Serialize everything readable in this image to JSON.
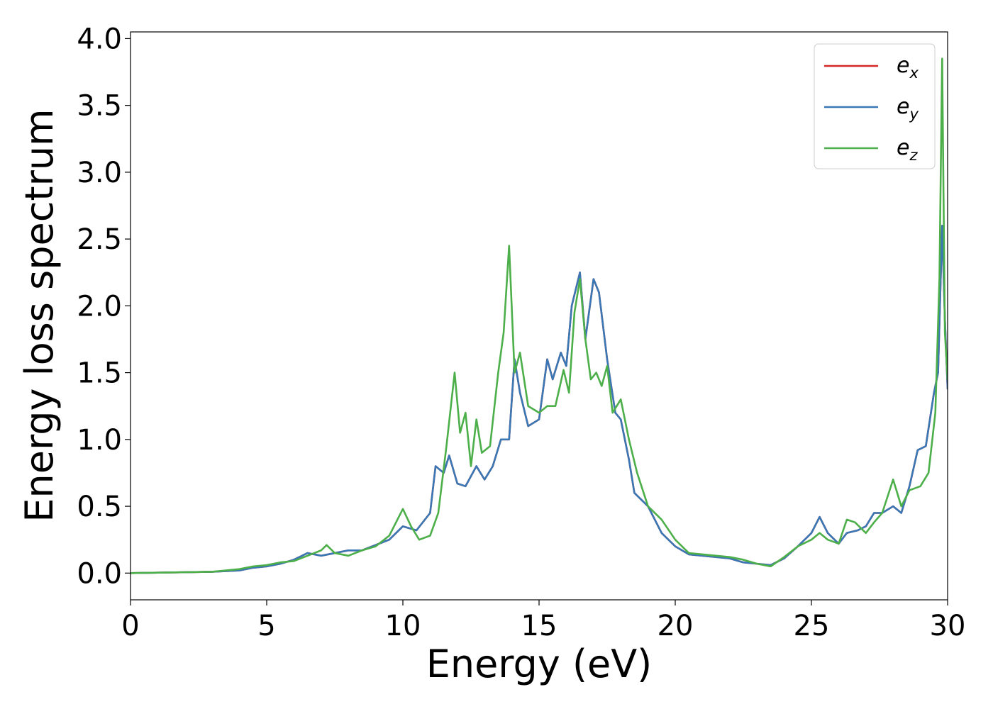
{
  "chart_data": {
    "type": "line",
    "title": "",
    "xlabel": "Energy (eV)",
    "ylabel": "Energy loss spectrum",
    "xlim": [
      0,
      30
    ],
    "ylim": [
      -0.2,
      4.05
    ],
    "xticks": [
      0,
      5,
      10,
      15,
      20,
      25,
      30
    ],
    "xtick_labels": [
      "0",
      "5",
      "10",
      "15",
      "20",
      "25",
      "30"
    ],
    "yticks": [
      0.0,
      0.5,
      1.0,
      1.5,
      2.0,
      2.5,
      3.0,
      3.5,
      4.0
    ],
    "ytick_labels": [
      "0.0",
      "0.5",
      "1.0",
      "1.5",
      "2.0",
      "2.5",
      "3.0",
      "3.5",
      "4.0"
    ],
    "grid": false,
    "legend_position": "top-right",
    "series": [
      {
        "name": "e_x",
        "legend_base": "e",
        "legend_sub": "x",
        "color": "#d62728",
        "x": [
          0,
          3,
          4,
          4.5,
          5,
          5.5,
          6,
          6.5,
          7,
          7.5,
          8,
          8.5,
          9,
          9.5,
          10,
          10.5,
          11,
          11.2,
          11.5,
          11.7,
          12,
          12.3,
          12.7,
          13,
          13.3,
          13.6,
          13.9,
          14.1,
          14.3,
          14.6,
          15,
          15.3,
          15.5,
          15.8,
          16,
          16.2,
          16.5,
          16.7,
          17,
          17.2,
          17.5,
          17.8,
          18,
          18.3,
          18.5,
          19,
          19.5,
          20,
          20.5,
          21,
          21.5,
          22,
          22.5,
          23,
          23.5,
          24,
          24.5,
          25,
          25.3,
          25.6,
          26,
          26.3,
          26.7,
          27,
          27.3,
          27.6,
          28,
          28.3,
          28.6,
          28.9,
          29.2,
          29.5,
          29.65,
          29.8,
          29.9,
          30
        ],
        "y": [
          0.0,
          0.01,
          0.02,
          0.04,
          0.05,
          0.07,
          0.1,
          0.15,
          0.13,
          0.15,
          0.17,
          0.17,
          0.21,
          0.25,
          0.35,
          0.32,
          0.45,
          0.8,
          0.75,
          0.88,
          0.67,
          0.65,
          0.8,
          0.7,
          0.8,
          1.0,
          1.0,
          1.6,
          1.35,
          1.1,
          1.15,
          1.6,
          1.45,
          1.65,
          1.55,
          2.0,
          2.25,
          1.75,
          2.2,
          2.1,
          1.6,
          1.2,
          1.15,
          0.85,
          0.6,
          0.5,
          0.3,
          0.2,
          0.14,
          0.13,
          0.12,
          0.11,
          0.08,
          0.07,
          0.06,
          0.11,
          0.2,
          0.3,
          0.42,
          0.3,
          0.22,
          0.3,
          0.32,
          0.35,
          0.45,
          0.45,
          0.5,
          0.45,
          0.65,
          0.92,
          0.95,
          1.35,
          1.5,
          2.6,
          1.9,
          1.38
        ]
      },
      {
        "name": "e_y",
        "legend_base": "e",
        "legend_sub": "y",
        "color": "#3a78b5",
        "x": [
          0,
          3,
          4,
          4.5,
          5,
          5.5,
          6,
          6.5,
          7,
          7.5,
          8,
          8.5,
          9,
          9.5,
          10,
          10.5,
          11,
          11.2,
          11.5,
          11.7,
          12,
          12.3,
          12.7,
          13,
          13.3,
          13.6,
          13.9,
          14.1,
          14.3,
          14.6,
          15,
          15.3,
          15.5,
          15.8,
          16,
          16.2,
          16.5,
          16.7,
          17,
          17.2,
          17.5,
          17.8,
          18,
          18.3,
          18.5,
          19,
          19.5,
          20,
          20.5,
          21,
          21.5,
          22,
          22.5,
          23,
          23.5,
          24,
          24.5,
          25,
          25.3,
          25.6,
          26,
          26.3,
          26.7,
          27,
          27.3,
          27.6,
          28,
          28.3,
          28.6,
          28.9,
          29.2,
          29.5,
          29.65,
          29.8,
          29.9,
          30
        ],
        "y": [
          0.0,
          0.01,
          0.02,
          0.04,
          0.05,
          0.07,
          0.1,
          0.15,
          0.13,
          0.15,
          0.17,
          0.17,
          0.21,
          0.25,
          0.35,
          0.32,
          0.45,
          0.8,
          0.75,
          0.88,
          0.67,
          0.65,
          0.8,
          0.7,
          0.8,
          1.0,
          1.0,
          1.6,
          1.35,
          1.1,
          1.15,
          1.6,
          1.45,
          1.65,
          1.55,
          2.0,
          2.25,
          1.75,
          2.2,
          2.1,
          1.6,
          1.2,
          1.15,
          0.85,
          0.6,
          0.5,
          0.3,
          0.2,
          0.14,
          0.13,
          0.12,
          0.11,
          0.08,
          0.07,
          0.06,
          0.11,
          0.2,
          0.3,
          0.42,
          0.3,
          0.22,
          0.3,
          0.32,
          0.35,
          0.45,
          0.45,
          0.5,
          0.45,
          0.65,
          0.92,
          0.95,
          1.35,
          1.5,
          2.6,
          1.9,
          1.38
        ]
      },
      {
        "name": "e_z",
        "legend_base": "e",
        "legend_sub": "z",
        "color": "#4daf4a",
        "x": [
          0,
          3,
          4,
          4.5,
          5,
          5.5,
          6,
          6.5,
          7,
          7.2,
          7.5,
          8,
          8.5,
          9,
          9.5,
          10,
          10.3,
          10.6,
          11,
          11.3,
          11.6,
          11.9,
          12.1,
          12.3,
          12.5,
          12.7,
          12.9,
          13.2,
          13.5,
          13.7,
          13.9,
          14.1,
          14.3,
          14.6,
          15,
          15.3,
          15.6,
          15.9,
          16.1,
          16.3,
          16.5,
          16.7,
          16.9,
          17.1,
          17.3,
          17.5,
          17.7,
          18,
          18.3,
          18.6,
          19,
          19.5,
          20,
          20.5,
          21,
          21.5,
          22,
          22.5,
          23,
          23.5,
          24,
          24.5,
          25,
          25.3,
          25.6,
          26,
          26.3,
          26.6,
          27,
          27.3,
          27.6,
          28,
          28.3,
          28.6,
          29,
          29.3,
          29.55,
          29.7,
          29.8,
          29.9,
          30
        ],
        "y": [
          0.0,
          0.01,
          0.03,
          0.05,
          0.06,
          0.08,
          0.09,
          0.13,
          0.17,
          0.21,
          0.15,
          0.13,
          0.17,
          0.2,
          0.28,
          0.48,
          0.35,
          0.25,
          0.28,
          0.45,
          0.95,
          1.5,
          1.05,
          1.2,
          0.8,
          1.15,
          0.9,
          0.95,
          1.5,
          1.8,
          2.45,
          1.5,
          1.65,
          1.25,
          1.2,
          1.25,
          1.25,
          1.52,
          1.35,
          1.95,
          2.2,
          1.75,
          1.45,
          1.5,
          1.4,
          1.55,
          1.2,
          1.3,
          1.0,
          0.75,
          0.5,
          0.4,
          0.25,
          0.15,
          0.14,
          0.13,
          0.12,
          0.1,
          0.07,
          0.05,
          0.12,
          0.2,
          0.25,
          0.3,
          0.25,
          0.22,
          0.4,
          0.38,
          0.3,
          0.38,
          0.45,
          0.7,
          0.5,
          0.62,
          0.65,
          0.75,
          1.2,
          2.2,
          3.85,
          1.8,
          1.45
        ]
      }
    ]
  }
}
